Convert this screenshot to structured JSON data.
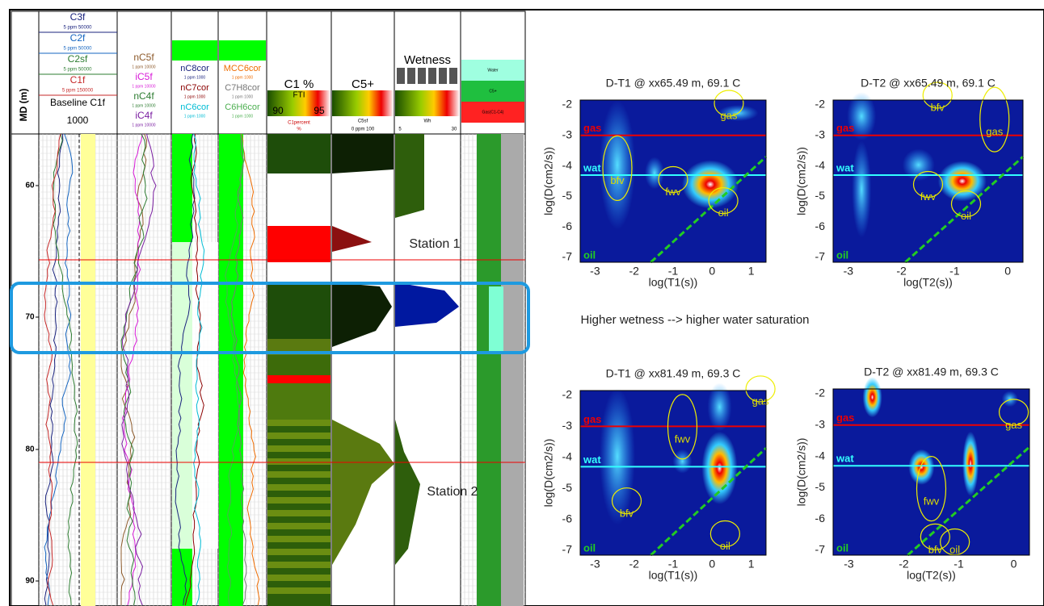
{
  "log": {
    "depth_label": "MD (m)",
    "depth_ticks": [
      "60",
      "70",
      "80",
      "90"
    ],
    "track1": {
      "curves": [
        "C3f",
        "C2f",
        "C2sf",
        "C1f"
      ],
      "scales": [
        "5 ppm 50000",
        "5 ppm 50000",
        "5 ppm 50000",
        "5 ppm 150000"
      ],
      "baseline": "Baseline C1f",
      "baseline_value": "1000"
    },
    "track2": {
      "curves": [
        "nC5f",
        "iC5f",
        "nC4f",
        "iC4f"
      ],
      "scales": [
        "1 ppm 10000",
        "1 ppm 10000",
        "1 ppm 10000",
        "1 ppm 10000"
      ]
    },
    "track3": {
      "curves": [
        "nC8cor",
        "nC7cor",
        "nC6cor"
      ],
      "scales": [
        "1 ppm 1000",
        "1 ppm 1000",
        "1 ppm 1000"
      ]
    },
    "track4": {
      "curves": [
        "MCC6cor",
        "C7H8cor",
        "C6H6cor"
      ],
      "scales": [
        "1 ppm 1000",
        "1 ppm 1000",
        "1 ppm 1000"
      ]
    },
    "track5": {
      "title": "C1 %",
      "curve": "FTI",
      "min": "90",
      "max": "95",
      "unit_name": "C1percent",
      "unit": "%"
    },
    "track6": {
      "title": "C5+",
      "curve": "C5sf",
      "scale": "0 ppm 100"
    },
    "track7": {
      "title": "Wetness",
      "curve": "Wh",
      "min": "5",
      "max": "30"
    },
    "track8": {
      "legend": [
        "Water",
        "C5+",
        "Gas(C1-C4)"
      ]
    }
  },
  "annotations": {
    "station1": "Station 1",
    "station2": "Station 2",
    "note": "Higher wetness --> higher water saturation"
  },
  "maps": [
    {
      "title": "D-T1 @ xx65.49 m, 69.1 C",
      "xlabel": "log(T1(s))",
      "ylabel": "log(D(cm2/s))",
      "xticks": [
        "-3",
        "-2",
        "-1",
        "0",
        "1"
      ],
      "yticks": [
        "-2",
        "-3",
        "-4",
        "-5",
        "-6",
        "-7"
      ],
      "lines": [
        "gas",
        "wat",
        "oil"
      ],
      "regions": [
        "gas",
        "bfv",
        "fwv",
        "oil"
      ]
    },
    {
      "title": "D-T2 @ xx65.49 m, 69.1 C",
      "xlabel": "log(T2(s))",
      "ylabel": "log(D(cm2/s))",
      "xticks": [
        "-3",
        "-2",
        "-1",
        "0"
      ],
      "yticks": [
        "-2",
        "-3",
        "-4",
        "-5",
        "-6",
        "-7"
      ],
      "lines": [
        "gas",
        "wat",
        "oil"
      ],
      "regions": [
        "bfv",
        "gas",
        "fwv",
        "oil"
      ]
    },
    {
      "title": "D-T1 @ xx81.49 m, 69.3 C",
      "xlabel": "log(T1(s))",
      "ylabel": "log(D(cm2/s))",
      "xticks": [
        "-3",
        "-2",
        "-1",
        "0",
        "1"
      ],
      "yticks": [
        "-2",
        "-3",
        "-4",
        "-5",
        "-6",
        "-7"
      ],
      "lines": [
        "gas",
        "wat",
        "oil"
      ],
      "regions": [
        "gas",
        "fwv",
        "bfv",
        "oil"
      ]
    },
    {
      "title": "D-T2 @ xx81.49 m, 69.3 C",
      "xlabel": "log(T2(s))",
      "ylabel": "log(D(cm2/s))",
      "xticks": [
        "-3",
        "-2",
        "-1",
        "0"
      ],
      "yticks": [
        "-2",
        "-3",
        "-4",
        "-5",
        "-6",
        "-7"
      ],
      "lines": [
        "gas",
        "wat",
        "oil"
      ],
      "regions": [
        "gas",
        "fwv",
        "bfv",
        "oil"
      ]
    }
  ]
}
